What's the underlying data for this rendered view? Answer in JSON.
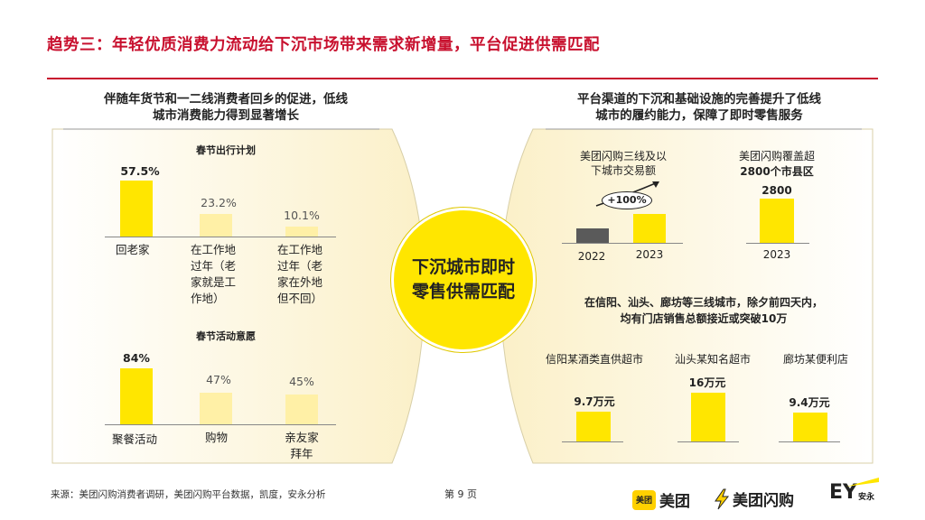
{
  "title": "趋势三：年轻优质消费力流动给下沉市场带来需求新增量，平台促进供需匹配",
  "left_panel": {
    "heading_lines": [
      "伴随年货节和一二线消费者回乡的促进，低线",
      "城市消费能力得到显著增长"
    ],
    "chart1": {
      "title": "春节出行计划",
      "items": [
        {
          "value_label": "57.5%",
          "value": 57.5,
          "category_lines": [
            "回老家"
          ]
        },
        {
          "value_label": "23.2%",
          "value": 23.2,
          "category_lines": [
            "在工作地",
            "过年（老",
            "家就是工",
            "作地）"
          ]
        },
        {
          "value_label": "10.1%",
          "value": 10.1,
          "category_lines": [
            "在工作地",
            "过年（老",
            "家在外地",
            "但不回）"
          ]
        }
      ]
    },
    "chart2": {
      "title": "春节活动意愿",
      "items": [
        {
          "value_label": "84%",
          "value": 84,
          "category_lines": [
            "聚餐活动"
          ]
        },
        {
          "value_label": "47%",
          "value": 47,
          "category_lines": [
            "购物"
          ]
        },
        {
          "value_label": "45%",
          "value": 45,
          "category_lines": [
            "亲友家",
            "拜年"
          ]
        }
      ]
    }
  },
  "center": {
    "lines": [
      "下沉城市即时",
      "零售供需匹配"
    ]
  },
  "right_panel": {
    "heading_lines": [
      "平台渠道的下沉和基础设施的完善提升了低线",
      "城市的履约能力，保障了即时零售服务"
    ],
    "chart3": {
      "title_lines": [
        "美团闪购三线及以",
        "下城市交易额"
      ],
      "growth_label": "+100%",
      "items": [
        {
          "category": "2022",
          "value": 1
        },
        {
          "category": "2023",
          "value": 2
        }
      ]
    },
    "chart4": {
      "title_lines": [
        "美团闪购覆盖超",
        "2800个市县区"
      ],
      "items": [
        {
          "category": "2023",
          "value_label": "2800",
          "value": 2800
        }
      ]
    },
    "chart5": {
      "title_lines": [
        "在信阳、汕头、廊坊等三线城市，除夕前四天内，",
        "均有门店销售总额接近或突破10万"
      ],
      "items": [
        {
          "category": "信阳某酒类直供超市",
          "value_label": "9.7万元",
          "value": 9.7
        },
        {
          "category": "汕头某知名超市",
          "value_label": "16万元",
          "value": 16
        },
        {
          "category": "廊坊某便利店",
          "value_label": "9.4万元",
          "value": 9.4
        }
      ]
    }
  },
  "footer": {
    "source": "来源：美团闪购消费者调研，美团闪购平台数据，凯度，安永分析",
    "page": "第 9 页",
    "logo_meituan_box": "美团",
    "logo_meituan": "美团",
    "logo_flash": "美团闪购",
    "logo_ey": "EY",
    "logo_ey_sub": "安永"
  },
  "colors": {
    "accent_red": "#c8102e",
    "yellow": "#ffe600",
    "light_yellow": "#fff0a6",
    "panel_bg": "#fdf6dc",
    "gray_bar": "#5a5a5a"
  }
}
